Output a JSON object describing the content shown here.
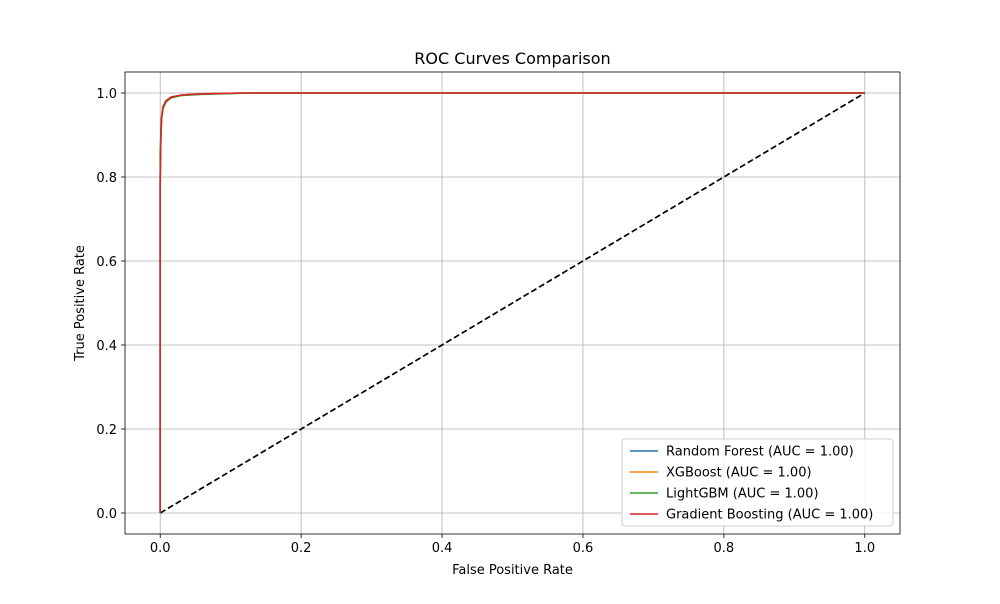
{
  "chart_data": {
    "type": "line",
    "title": "ROC Curves Comparison",
    "xlabel": "False Positive Rate",
    "ylabel": "True Positive Rate",
    "xlim": [
      -0.05,
      1.05
    ],
    "ylim": [
      -0.05,
      1.05
    ],
    "grid": true,
    "legend_location": "lower-right",
    "x_ticks": [
      0.0,
      0.2,
      0.4,
      0.6,
      0.8,
      1.0
    ],
    "y_ticks": [
      0.0,
      0.2,
      0.4,
      0.6,
      0.8,
      1.0
    ],
    "x_tick_labels": [
      "0.0",
      "0.2",
      "0.4",
      "0.6",
      "0.8",
      "1.0"
    ],
    "y_tick_labels": [
      "0.0",
      "0.2",
      "0.4",
      "0.6",
      "0.8",
      "1.0"
    ],
    "series": [
      {
        "name": "Random Forest (AUC = 1.00)",
        "color": "#1f77b4",
        "x": [
          0.0,
          0.0,
          0.001,
          0.002,
          0.004,
          0.008,
          0.015,
          0.03,
          0.06,
          0.12,
          1.0
        ],
        "y": [
          0.0,
          0.8,
          0.9,
          0.94,
          0.965,
          0.98,
          0.99,
          0.995,
          0.998,
          1.0,
          1.0
        ]
      },
      {
        "name": "XGBoost (AUC = 1.00)",
        "color": "#ff7f0e",
        "x": [
          0.0,
          0.0,
          0.001,
          0.002,
          0.004,
          0.008,
          0.015,
          0.03,
          0.06,
          0.12,
          1.0
        ],
        "y": [
          0.0,
          0.8,
          0.91,
          0.945,
          0.968,
          0.982,
          0.99,
          0.995,
          0.998,
          1.0,
          1.0
        ]
      },
      {
        "name": "LightGBM (AUC = 1.00)",
        "color": "#2ca02c",
        "x": [
          0.0,
          0.0,
          0.001,
          0.002,
          0.004,
          0.008,
          0.015,
          0.03,
          0.06,
          0.13,
          1.0
        ],
        "y": [
          0.0,
          0.86,
          0.91,
          0.94,
          0.963,
          0.978,
          0.988,
          0.994,
          0.997,
          1.0,
          1.0
        ]
      },
      {
        "name": "Gradient Boosting (AUC = 1.00)",
        "color": "#d62728",
        "x": [
          0.0,
          0.0,
          0.001,
          0.002,
          0.004,
          0.008,
          0.015,
          0.03,
          0.06,
          0.12,
          1.0
        ],
        "y": [
          0.0,
          0.78,
          0.9,
          0.94,
          0.966,
          0.981,
          0.99,
          0.995,
          0.998,
          1.0,
          1.0
        ]
      }
    ],
    "reference_line": {
      "x": [
        0.0,
        1.0
      ],
      "y": [
        0.0,
        1.0
      ],
      "color": "#000000",
      "style": "dashed"
    }
  }
}
